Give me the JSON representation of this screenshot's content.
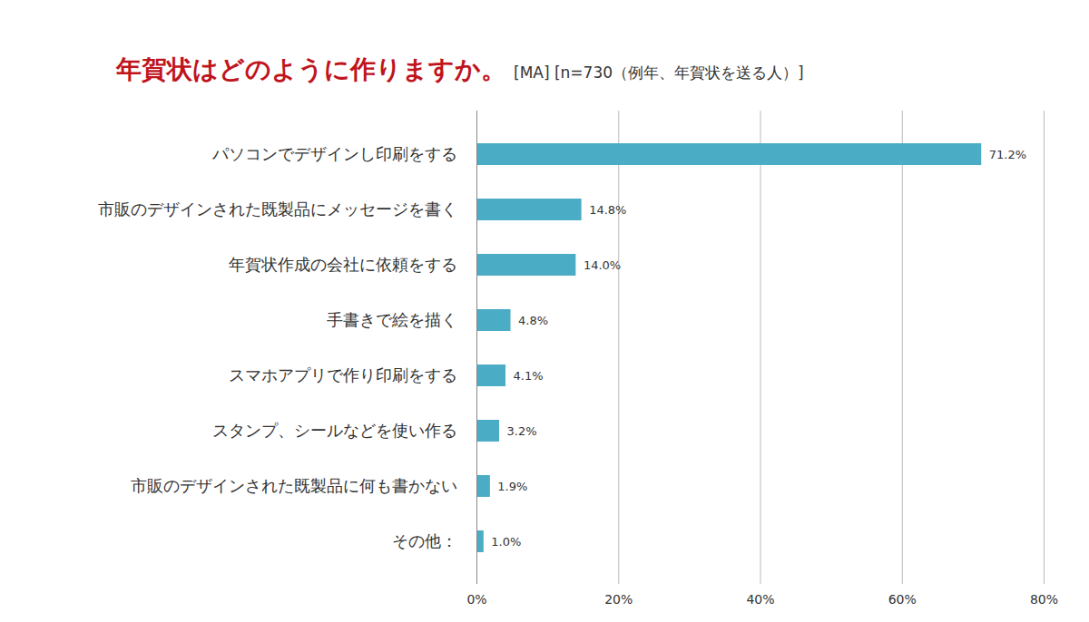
{
  "chart_data": {
    "type": "bar",
    "orientation": "horizontal",
    "title": "年賀状はどのように作りますか。",
    "subtitle": "[MA] [n=730（例年、年賀状を送る人）]",
    "categories": [
      "パソコンでデザインし印刷をする",
      "市販のデザインされた既製品にメッセージを書く",
      "年賀状作成の会社に依頼をする",
      "手書きで絵を描く",
      "スマホアプリで作り印刷をする",
      "スタンプ、シールなどを使い作る",
      "市販のデザインされた既製品に何も書かない",
      "その他："
    ],
    "values": [
      71.2,
      14.8,
      14.0,
      4.8,
      4.1,
      3.2,
      1.9,
      1.0
    ],
    "value_labels": [
      "71.2%",
      "14.8%",
      "14.0%",
      "4.8%",
      "4.1%",
      "3.2%",
      "1.9%",
      "1.0%"
    ],
    "data_labels": true,
    "color": "#4bacc6",
    "xlim": [
      0,
      80
    ],
    "xticks": [
      {
        "value": 0,
        "label": "0%"
      },
      {
        "value": 20,
        "label": "20%"
      },
      {
        "value": 40,
        "label": "40%"
      },
      {
        "value": 60,
        "label": "60%"
      },
      {
        "value": 80,
        "label": "80%"
      }
    ],
    "grid": true
  }
}
